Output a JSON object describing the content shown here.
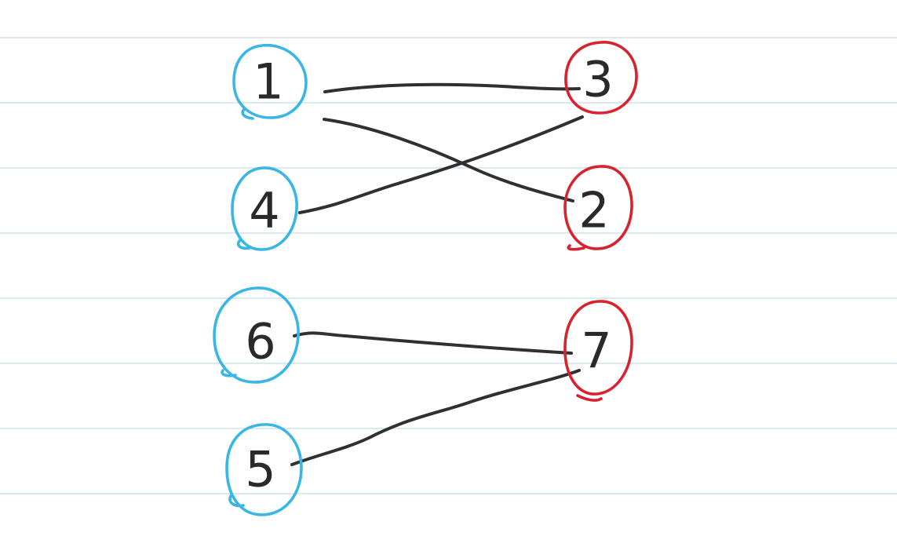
{
  "nodes": {
    "left": [
      {
        "id": "n1",
        "label": "1"
      },
      {
        "id": "n4",
        "label": "4"
      },
      {
        "id": "n6",
        "label": "6"
      },
      {
        "id": "n5",
        "label": "5"
      }
    ],
    "right": [
      {
        "id": "n3",
        "label": "3"
      },
      {
        "id": "n2",
        "label": "2"
      },
      {
        "id": "n7",
        "label": "7"
      }
    ]
  },
  "edges": [
    {
      "from": "1",
      "to": "3"
    },
    {
      "from": "1",
      "to": "2"
    },
    {
      "from": "4",
      "to": "3"
    },
    {
      "from": "6",
      "to": "7"
    },
    {
      "from": "5",
      "to": "7"
    }
  ],
  "colors": {
    "left_group": "#38b6e6",
    "right_group": "#d8232f",
    "edge": "#2f3031",
    "ruled_line": "#cfe3ec",
    "background": "#ffffff"
  }
}
